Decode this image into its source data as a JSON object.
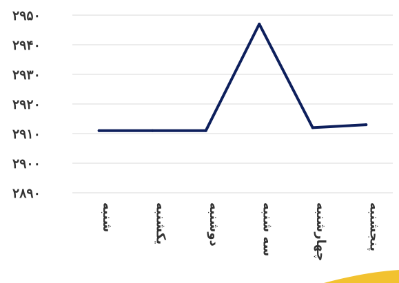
{
  "chart_data": {
    "type": "line",
    "categories": [
      "شنبه",
      "یکشنبه",
      "دوشنبه",
      "سه شنبه",
      "چهارشنبه",
      "پنجشنبه"
    ],
    "series": [
      {
        "values": [
          2911,
          2911,
          2911,
          2947,
          2912,
          2913
        ]
      }
    ],
    "y_ticks": [
      "۲۸۹۰",
      "۲۹۰۰",
      "۲۹۱۰",
      "۲۹۲۰",
      "۲۹۳۰",
      "۲۹۴۰",
      "۲۹۵۰"
    ],
    "ylim": [
      2890,
      2950
    ],
    "grid": true,
    "legend": "none",
    "line_color": "#0d1f5c"
  }
}
